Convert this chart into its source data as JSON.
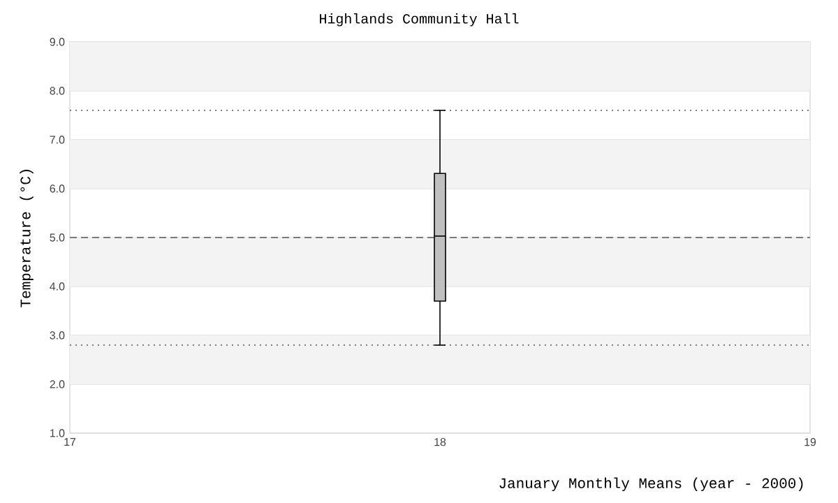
{
  "chart_data": {
    "type": "box",
    "title": "Highlands Community Hall",
    "xlabel": "January Monthly Means (year - 2000)",
    "ylabel": "Temperature (°C)",
    "x": [
      18
    ],
    "boxes": [
      {
        "low": 2.8,
        "q1": 3.7,
        "median": 5.03,
        "q3": 6.31,
        "high": 7.6
      }
    ],
    "color": "#c0c0c0",
    "xlim": [
      17,
      19
    ],
    "xticks": [
      17,
      18,
      19
    ],
    "ylim": [
      1.0,
      9.0
    ],
    "yticks": [
      {
        "value": 1,
        "label": "1.0"
      },
      {
        "value": 2,
        "label": "2.0"
      },
      {
        "value": 3,
        "label": "3.0"
      },
      {
        "value": 4,
        "label": "4.0"
      },
      {
        "value": 5,
        "label": "5.0"
      },
      {
        "value": 6,
        "label": "6.0"
      },
      {
        "value": 7,
        "label": "7.0"
      },
      {
        "value": 8,
        "label": "8.0"
      },
      {
        "value": 9,
        "label": "9.0"
      }
    ],
    "grid": "y",
    "ref_lines": [
      {
        "axis": "y",
        "value": 7.6,
        "line_style": "dotted",
        "color": "#555555"
      },
      {
        "axis": "y",
        "value": 5.0,
        "line_style": "dashed",
        "color": "#555555"
      },
      {
        "axis": "y",
        "value": 2.8,
        "line_style": "dotted",
        "color": "#555555"
      }
    ]
  }
}
